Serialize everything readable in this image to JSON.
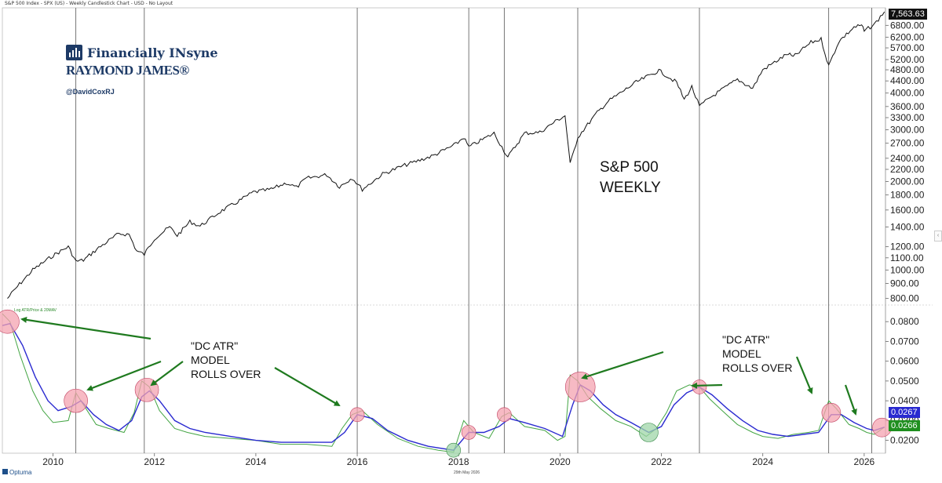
{
  "header_text": "S&P 500 Index - SPX (US) - Weekly Candlestick Chart - USD - No Layout",
  "branding": {
    "name": "Financially INsyne",
    "firm": "RAYMOND JAMES®",
    "handle": "@DavidCoxRJ"
  },
  "footer": {
    "software": "Optuma",
    "date": "29th May 2026"
  },
  "colors": {
    "price": "#111111",
    "atr": "#44a544",
    "ma": "#2a2ad0",
    "circle_red": "#f4a3b0",
    "circle_green": "#9fd6a8",
    "arrow": "#1f7a1f",
    "last_price_bg": "#111111",
    "last_ma_bg": "#2a2ad0",
    "last_atr_bg": "#1f8f1f",
    "grid_line": "#555555"
  },
  "chart_data": [
    {
      "type": "candlestick",
      "name": "price_panel",
      "title": "S&P 500 WEEKLY",
      "title_lines": [
        "S&P 500",
        "WEEKLY"
      ],
      "x_range": [
        2009.0,
        2026.42
      ],
      "y_scale": "log",
      "ylim": [
        760,
        7800
      ],
      "y_ticks": [
        800,
        900,
        1000,
        1100,
        1200,
        1400,
        1600,
        1800,
        2000,
        2200,
        2400,
        2700,
        3000,
        3300,
        3600,
        4000,
        4400,
        4800,
        5200,
        5700,
        6200,
        6800
      ],
      "y_tick_labels": [
        "800.00",
        "900.00",
        "1000.00",
        "1100.00",
        "1200.00",
        "1400.00",
        "1600.00",
        "1800.00",
        "2000.00",
        "2200.00",
        "2400.00",
        "2700.00",
        "3000.00",
        "3300.00",
        "3600.00",
        "4000.00",
        "4400.00",
        "4800.00",
        "5200.00",
        "5700.00",
        "6200.00",
        "6800.00"
      ],
      "last_value": 7563.63,
      "last_value_label": "7,563.63",
      "close_series": [
        [
          2009.1,
          800
        ],
        [
          2009.3,
          880
        ],
        [
          2009.6,
          1000
        ],
        [
          2010.0,
          1120
        ],
        [
          2010.3,
          1200
        ],
        [
          2010.45,
          1070
        ],
        [
          2010.6,
          1080
        ],
        [
          2010.9,
          1190
        ],
        [
          2011.3,
          1330
        ],
        [
          2011.5,
          1320
        ],
        [
          2011.65,
          1160
        ],
        [
          2011.8,
          1130
        ],
        [
          2012.0,
          1280
        ],
        [
          2012.3,
          1400
        ],
        [
          2012.45,
          1310
        ],
        [
          2012.7,
          1460
        ],
        [
          2012.9,
          1410
        ],
        [
          2013.3,
          1580
        ],
        [
          2013.6,
          1690
        ],
        [
          2013.95,
          1840
        ],
        [
          2014.3,
          1880
        ],
        [
          2014.6,
          1980
        ],
        [
          2014.8,
          1910
        ],
        [
          2015.0,
          2050
        ],
        [
          2015.4,
          2110
        ],
        [
          2015.65,
          1920
        ],
        [
          2015.9,
          2060
        ],
        [
          2016.1,
          1880
        ],
        [
          2016.5,
          2120
        ],
        [
          2016.9,
          2260
        ],
        [
          2017.5,
          2450
        ],
        [
          2017.95,
          2680
        ],
        [
          2018.1,
          2830
        ],
        [
          2018.2,
          2620
        ],
        [
          2018.7,
          2920
        ],
        [
          2018.97,
          2420
        ],
        [
          2019.3,
          2920
        ],
        [
          2019.6,
          2940
        ],
        [
          2019.95,
          3240
        ],
        [
          2020.1,
          3350
        ],
        [
          2020.2,
          2290
        ],
        [
          2020.35,
          2830
        ],
        [
          2020.7,
          3380
        ],
        [
          2020.95,
          3750
        ],
        [
          2021.5,
          4350
        ],
        [
          2021.95,
          4770
        ],
        [
          2022.3,
          4350
        ],
        [
          2022.45,
          3800
        ],
        [
          2022.6,
          4200
        ],
        [
          2022.75,
          3600
        ],
        [
          2022.95,
          3850
        ],
        [
          2023.5,
          4450
        ],
        [
          2023.8,
          4150
        ],
        [
          2024.0,
          4800
        ],
        [
          2024.5,
          5450
        ],
        [
          2024.6,
          5300
        ],
        [
          2024.95,
          5950
        ],
        [
          2025.15,
          6100
        ],
        [
          2025.3,
          4950
        ],
        [
          2025.5,
          6000
        ],
        [
          2025.8,
          6700
        ],
        [
          2025.95,
          6800
        ],
        [
          2026.0,
          6500
        ],
        [
          2026.2,
          6850
        ],
        [
          2026.4,
          7564
        ]
      ]
    },
    {
      "type": "line",
      "name": "atr_panel",
      "title": "Log ATR/Price & 20MAV",
      "x_range": [
        2009.0,
        2026.42
      ],
      "ylim": [
        0.0135,
        0.088
      ],
      "y_ticks": [
        0.02,
        0.03,
        0.04,
        0.05,
        0.06,
        0.07,
        0.08
      ],
      "y_tick_labels": [
        "0.0200",
        "0.0300",
        "0.0400",
        "0.0500",
        "0.0600",
        "0.0700",
        "0.0800"
      ],
      "x_ticks": [
        2010,
        2012,
        2014,
        2016,
        2018,
        2020,
        2022,
        2024,
        2026
      ],
      "x_tick_labels": [
        "2010",
        "2012",
        "2014",
        "2016",
        "2018",
        "2020",
        "2022",
        "2024",
        "2026"
      ],
      "series": [
        {
          "name": "ATR",
          "values": [
            [
              2009.0,
              0.084
            ],
            [
              2009.15,
              0.08
            ],
            [
              2009.35,
              0.063
            ],
            [
              2009.6,
              0.045
            ],
            [
              2009.8,
              0.035
            ],
            [
              2010.0,
              0.029
            ],
            [
              2010.3,
              0.03
            ],
            [
              2010.45,
              0.044
            ],
            [
              2010.6,
              0.038
            ],
            [
              2010.85,
              0.028
            ],
            [
              2011.1,
              0.026
            ],
            [
              2011.4,
              0.024
            ],
            [
              2011.6,
              0.034
            ],
            [
              2011.75,
              0.05
            ],
            [
              2011.9,
              0.047
            ],
            [
              2012.1,
              0.035
            ],
            [
              2012.4,
              0.026
            ],
            [
              2012.65,
              0.024
            ],
            [
              2013.0,
              0.022
            ],
            [
              2013.5,
              0.021
            ],
            [
              2014.0,
              0.02
            ],
            [
              2014.5,
              0.018
            ],
            [
              2015.0,
              0.018
            ],
            [
              2015.5,
              0.017
            ],
            [
              2015.7,
              0.026
            ],
            [
              2015.9,
              0.033
            ],
            [
              2016.1,
              0.035
            ],
            [
              2016.4,
              0.028
            ],
            [
              2016.8,
              0.021
            ],
            [
              2017.2,
              0.017
            ],
            [
              2017.6,
              0.015
            ],
            [
              2017.9,
              0.014
            ],
            [
              2018.1,
              0.03
            ],
            [
              2018.3,
              0.024
            ],
            [
              2018.6,
              0.021
            ],
            [
              2018.85,
              0.032
            ],
            [
              2019.0,
              0.034
            ],
            [
              2019.3,
              0.027
            ],
            [
              2019.7,
              0.025
            ],
            [
              2019.95,
              0.02
            ],
            [
              2020.1,
              0.022
            ],
            [
              2020.2,
              0.053
            ],
            [
              2020.35,
              0.05
            ],
            [
              2020.55,
              0.042
            ],
            [
              2020.8,
              0.036
            ],
            [
              2021.1,
              0.03
            ],
            [
              2021.4,
              0.027
            ],
            [
              2021.7,
              0.022
            ],
            [
              2021.9,
              0.026
            ],
            [
              2022.1,
              0.034
            ],
            [
              2022.3,
              0.045
            ],
            [
              2022.55,
              0.048
            ],
            [
              2022.75,
              0.047
            ],
            [
              2022.95,
              0.041
            ],
            [
              2023.2,
              0.035
            ],
            [
              2023.5,
              0.028
            ],
            [
              2023.8,
              0.024
            ],
            [
              2024.0,
              0.022
            ],
            [
              2024.3,
              0.021
            ],
            [
              2024.6,
              0.023
            ],
            [
              2024.9,
              0.024
            ],
            [
              2025.1,
              0.025
            ],
            [
              2025.3,
              0.04
            ],
            [
              2025.45,
              0.036
            ],
            [
              2025.7,
              0.028
            ],
            [
              2025.9,
              0.026
            ],
            [
              2026.05,
              0.024
            ],
            [
              2026.2,
              0.023
            ],
            [
              2026.4,
              0.0266
            ]
          ]
        },
        {
          "name": "20MAV",
          "values": [
            [
              2009.0,
              0.078
            ],
            [
              2009.15,
              0.079
            ],
            [
              2009.4,
              0.068
            ],
            [
              2009.65,
              0.052
            ],
            [
              2009.9,
              0.04
            ],
            [
              2010.1,
              0.035
            ],
            [
              2010.35,
              0.037
            ],
            [
              2010.55,
              0.04
            ],
            [
              2010.8,
              0.033
            ],
            [
              2011.05,
              0.028
            ],
            [
              2011.3,
              0.025
            ],
            [
              2011.55,
              0.03
            ],
            [
              2011.75,
              0.042
            ],
            [
              2011.9,
              0.045
            ],
            [
              2012.1,
              0.04
            ],
            [
              2012.4,
              0.03
            ],
            [
              2012.7,
              0.026
            ],
            [
              2013.0,
              0.024
            ],
            [
              2013.5,
              0.022
            ],
            [
              2014.0,
              0.02
            ],
            [
              2014.5,
              0.019
            ],
            [
              2015.0,
              0.019
            ],
            [
              2015.5,
              0.019
            ],
            [
              2015.75,
              0.024
            ],
            [
              2016.0,
              0.033
            ],
            [
              2016.3,
              0.031
            ],
            [
              2016.6,
              0.025
            ],
            [
              2017.0,
              0.02
            ],
            [
              2017.4,
              0.017
            ],
            [
              2017.9,
              0.015
            ],
            [
              2018.2,
              0.024
            ],
            [
              2018.5,
              0.024
            ],
            [
              2018.8,
              0.027
            ],
            [
              2019.0,
              0.031
            ],
            [
              2019.3,
              0.029
            ],
            [
              2019.7,
              0.026
            ],
            [
              2020.05,
              0.022
            ],
            [
              2020.25,
              0.038
            ],
            [
              2020.4,
              0.048
            ],
            [
              2020.6,
              0.045
            ],
            [
              2020.85,
              0.038
            ],
            [
              2021.1,
              0.033
            ],
            [
              2021.4,
              0.029
            ],
            [
              2021.75,
              0.024
            ],
            [
              2022.0,
              0.027
            ],
            [
              2022.25,
              0.038
            ],
            [
              2022.5,
              0.044
            ],
            [
              2022.75,
              0.047
            ],
            [
              2023.0,
              0.043
            ],
            [
              2023.3,
              0.036
            ],
            [
              2023.6,
              0.03
            ],
            [
              2023.9,
              0.025
            ],
            [
              2024.2,
              0.023
            ],
            [
              2024.5,
              0.022
            ],
            [
              2024.8,
              0.023
            ],
            [
              2025.1,
              0.024
            ],
            [
              2025.35,
              0.033
            ],
            [
              2025.55,
              0.033
            ],
            [
              2025.8,
              0.029
            ],
            [
              2026.05,
              0.026
            ],
            [
              2026.2,
              0.025
            ],
            [
              2026.4,
              0.0267
            ]
          ]
        }
      ],
      "last_values": [
        {
          "name": "20MAV",
          "value": 0.0267,
          "label": "0.0267"
        },
        {
          "name": "ATR",
          "value": 0.0266,
          "label": "0.0266"
        }
      ],
      "highlight_circles": [
        {
          "x": 2009.1,
          "y": 0.08,
          "size": "large",
          "color": "red"
        },
        {
          "x": 2010.45,
          "y": 0.04,
          "size": "large",
          "color": "red"
        },
        {
          "x": 2011.85,
          "y": 0.0455,
          "size": "large",
          "color": "red"
        },
        {
          "x": 2016.0,
          "y": 0.033,
          "size": "small",
          "color": "red"
        },
        {
          "x": 2017.9,
          "y": 0.015,
          "size": "small",
          "color": "green"
        },
        {
          "x": 2018.2,
          "y": 0.024,
          "size": "small",
          "color": "red"
        },
        {
          "x": 2018.9,
          "y": 0.033,
          "size": "small",
          "color": "red"
        },
        {
          "x": 2020.4,
          "y": 0.047,
          "size": "xlarge",
          "color": "red"
        },
        {
          "x": 2021.75,
          "y": 0.024,
          "size": "medium",
          "color": "green"
        },
        {
          "x": 2022.75,
          "y": 0.047,
          "size": "small",
          "color": "red"
        },
        {
          "x": 2025.35,
          "y": 0.034,
          "size": "medium",
          "color": "red"
        },
        {
          "x": 2026.35,
          "y": 0.0265,
          "size": "medium",
          "color": "red"
        }
      ],
      "annotations": [
        {
          "lines": [
            "\"DC ATR\"",
            "MODEL",
            "ROLLS OVER"
          ]
        },
        {
          "lines": [
            "\"DC ATR\"",
            "MODEL",
            "ROLLS OVER"
          ]
        }
      ]
    }
  ],
  "vertical_markers": [
    2010.45,
    2011.8,
    2016.0,
    2018.2,
    2018.9,
    2020.35,
    2022.75,
    2025.3,
    2026.15
  ]
}
